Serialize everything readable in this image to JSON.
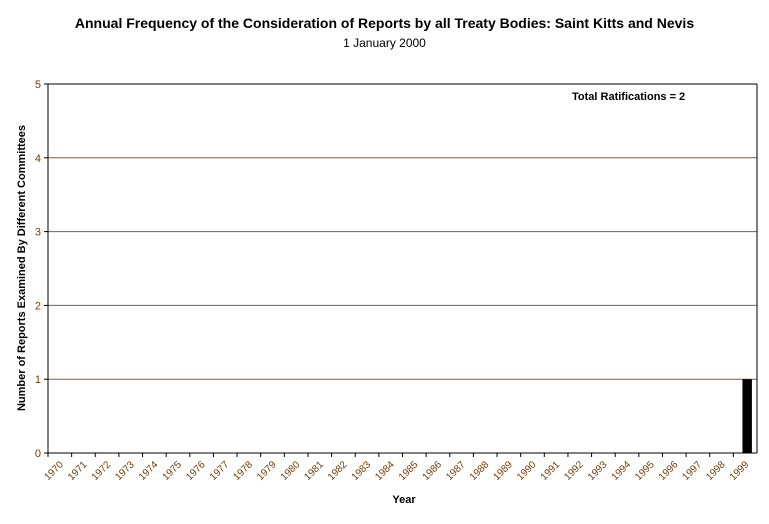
{
  "chart_data": {
    "type": "bar",
    "title": "Annual Frequency of the Consideration of Reports by all Treaty Bodies: Saint Kitts and Nevis",
    "subtitle": "1 January 2000",
    "xlabel": "Year",
    "ylabel": "Number of Reports Examined By Different Committees",
    "annotation": "Total Ratifications = 2",
    "ylim": [
      0,
      5
    ],
    "yticks": [
      "0",
      "1",
      "2",
      "3",
      "4",
      "5"
    ],
    "grid": true,
    "categories": [
      "1970",
      "1971",
      "1972",
      "1973",
      "1974",
      "1975",
      "1976",
      "1977",
      "1978",
      "1979",
      "1980",
      "1981",
      "1982",
      "1983",
      "1984",
      "1985",
      "1986",
      "1987",
      "1988",
      "1989",
      "1990",
      "1991",
      "1992",
      "1993",
      "1994",
      "1995",
      "1996",
      "1997",
      "1998",
      "1999"
    ],
    "values": [
      0,
      0,
      0,
      0,
      0,
      0,
      0,
      0,
      0,
      0,
      0,
      0,
      0,
      0,
      0,
      0,
      0,
      0,
      0,
      0,
      0,
      0,
      0,
      0,
      0,
      0,
      0,
      0,
      0,
      1
    ],
    "colors": {
      "bar": "#000000",
      "grid": "#8b5a2b",
      "axis": "#000000",
      "tick_label": "#7a3b00"
    }
  }
}
